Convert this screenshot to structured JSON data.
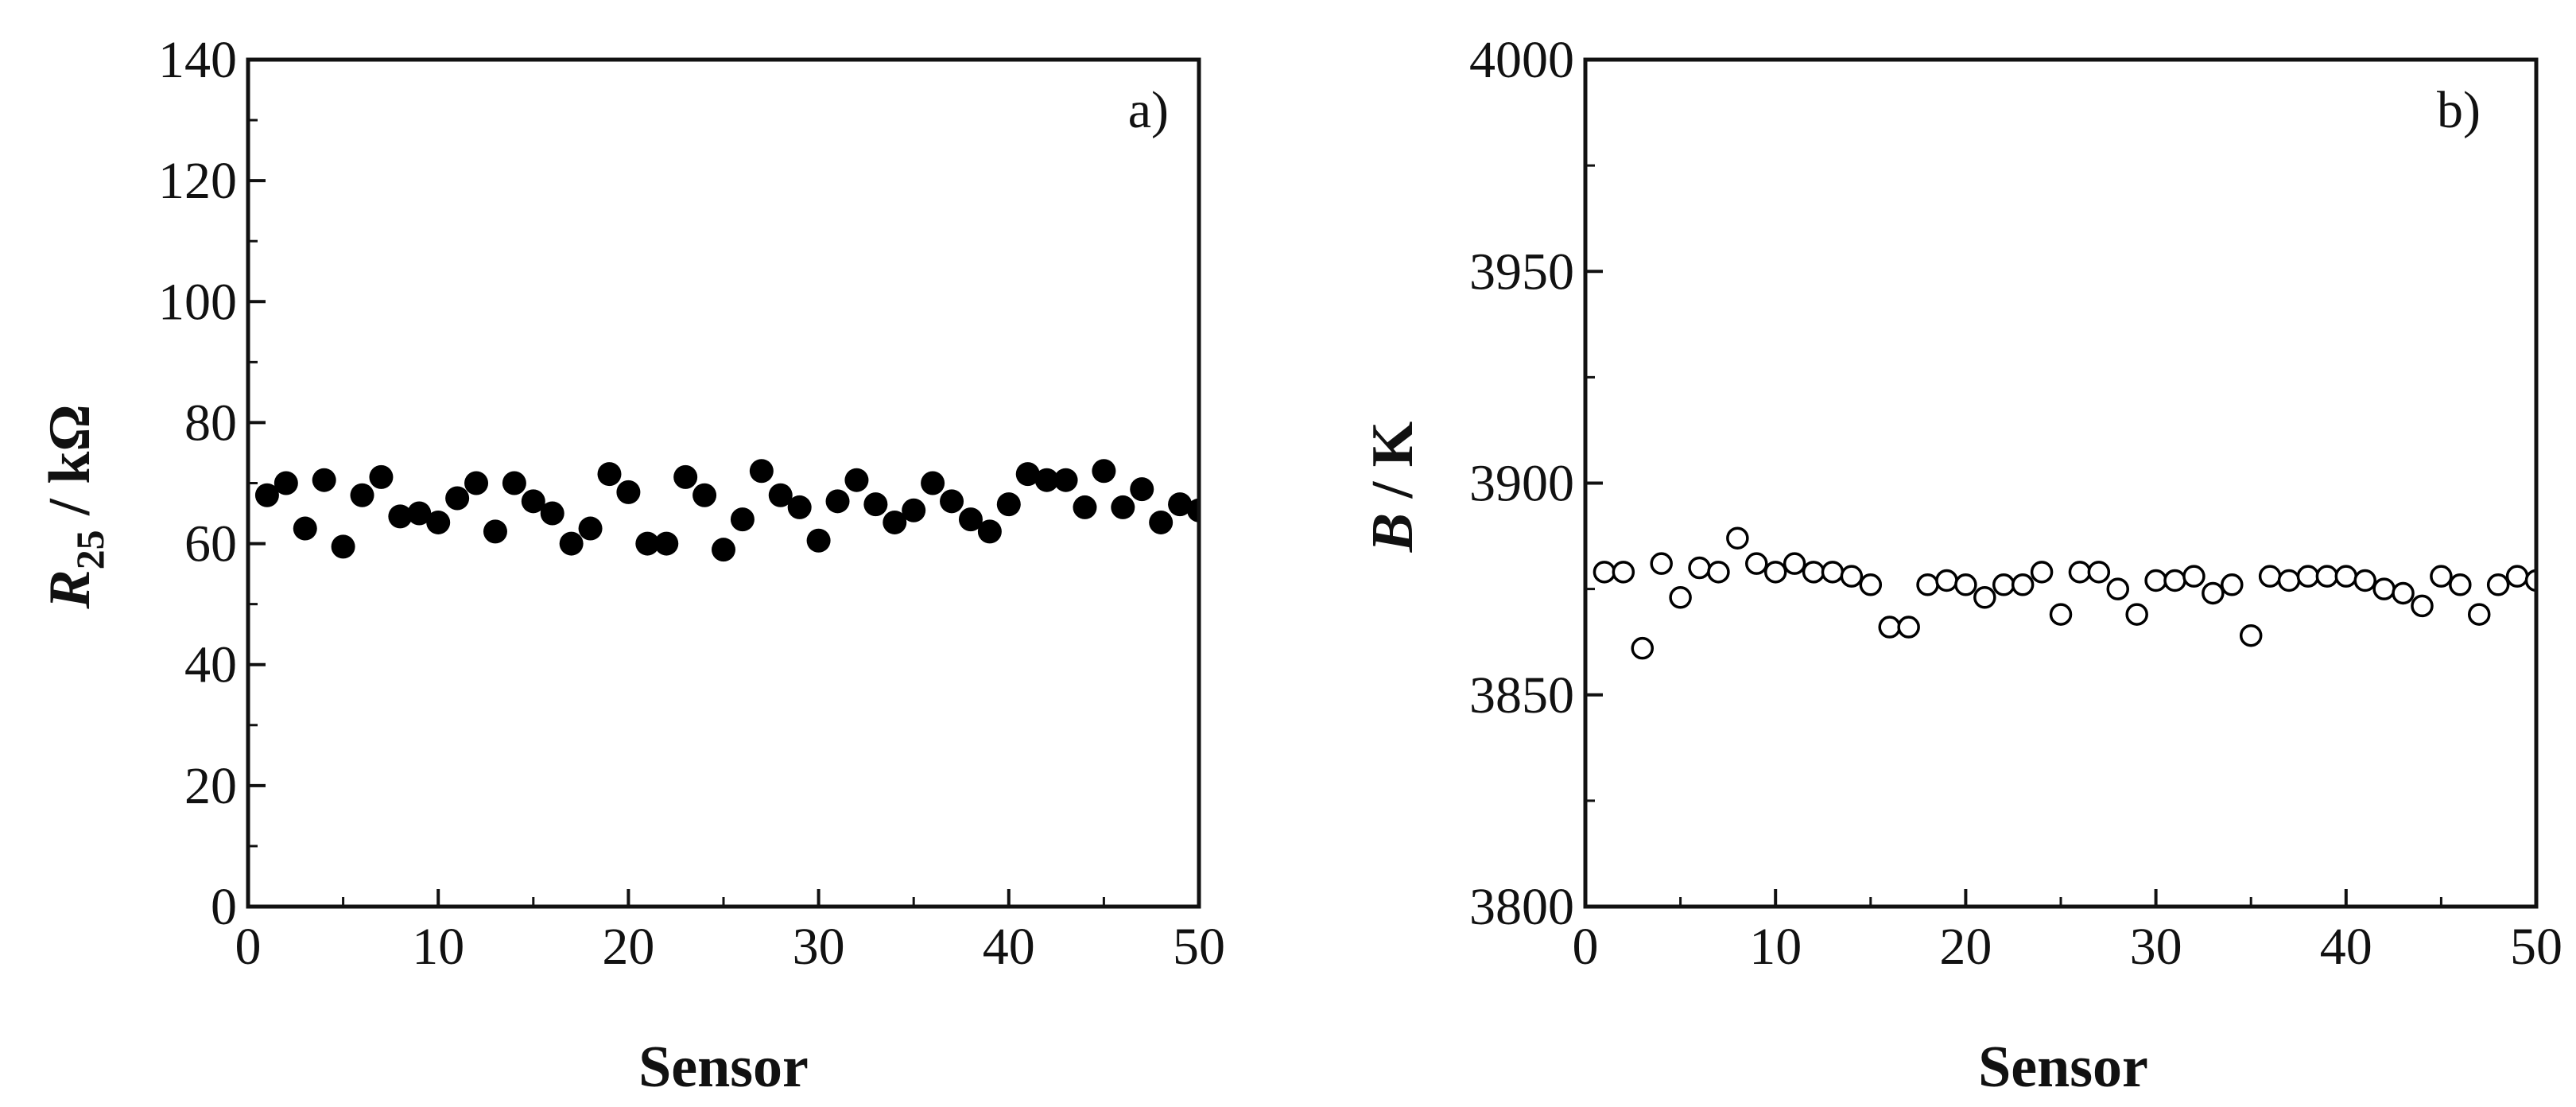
{
  "chart_data": [
    {
      "id": "a",
      "type": "scatter",
      "panel_label": "a)",
      "xlabel": "Sensor",
      "ylabel": {
        "main": "R",
        "sub": "25",
        "rest": " / kΩ"
      },
      "xlim": [
        0,
        50
      ],
      "ylim": [
        0,
        140
      ],
      "xticks": [
        0,
        10,
        20,
        30,
        40,
        50
      ],
      "yticks": [
        0,
        20,
        40,
        60,
        80,
        100,
        120,
        140
      ],
      "yminor_step": 10,
      "marker": "filled-circle",
      "grid": false,
      "series": [
        {
          "x": [
            1,
            2,
            3,
            4,
            5,
            6,
            7,
            8,
            9,
            10,
            11,
            12,
            13,
            14,
            15,
            16,
            17,
            18,
            19,
            20,
            21,
            22,
            23,
            24,
            25,
            26,
            27,
            28,
            29,
            30,
            31,
            32,
            33,
            34,
            35,
            36,
            37,
            38,
            39,
            40,
            41,
            42,
            43,
            44,
            45,
            46,
            47,
            48,
            49,
            50
          ],
          "values": [
            68,
            70,
            62.5,
            70.5,
            59.5,
            68,
            71,
            64.5,
            65,
            63.5,
            67.5,
            70,
            62,
            70,
            67,
            65,
            60,
            62.5,
            71.5,
            68.5,
            60,
            60,
            71,
            68,
            59,
            64,
            72,
            68,
            66,
            60.5,
            67,
            70.5,
            66.5,
            63.5,
            65.5,
            70,
            67,
            64,
            62,
            66.5,
            71.5,
            70.5,
            70.5,
            66,
            72,
            66,
            69,
            63.5,
            66.5,
            65.5
          ]
        }
      ]
    },
    {
      "id": "b",
      "type": "scatter",
      "panel_label": "b)",
      "xlabel": "Sensor",
      "ylabel": {
        "main": "B",
        "sub": "",
        "rest": " / K"
      },
      "xlim": [
        0,
        50
      ],
      "ylim": [
        3800,
        4000
      ],
      "xticks": [
        0,
        10,
        20,
        30,
        40,
        50
      ],
      "yticks": [
        3800,
        3850,
        3900,
        3950,
        4000
      ],
      "yminor_step": 25,
      "marker": "open-circle",
      "grid": false,
      "series": [
        {
          "x": [
            1,
            2,
            3,
            4,
            5,
            6,
            7,
            8,
            9,
            10,
            11,
            12,
            13,
            14,
            15,
            16,
            17,
            18,
            19,
            20,
            21,
            22,
            23,
            24,
            25,
            26,
            27,
            28,
            29,
            30,
            31,
            32,
            33,
            34,
            35,
            36,
            37,
            38,
            39,
            40,
            41,
            42,
            43,
            44,
            45,
            46,
            47,
            48,
            49,
            50
          ],
          "values": [
            3879,
            3879,
            3861,
            3881,
            3873,
            3880,
            3879,
            3887,
            3881,
            3879,
            3881,
            3879,
            3879,
            3878,
            3876,
            3866,
            3866,
            3876,
            3877,
            3876,
            3873,
            3876,
            3876,
            3879,
            3869,
            3879,
            3879,
            3875,
            3869,
            3877,
            3877,
            3878,
            3874,
            3876,
            3864,
            3878,
            3877,
            3878,
            3878,
            3878,
            3877,
            3875,
            3874,
            3871,
            3878,
            3876,
            3869,
            3876,
            3878,
            3877
          ]
        }
      ]
    }
  ]
}
